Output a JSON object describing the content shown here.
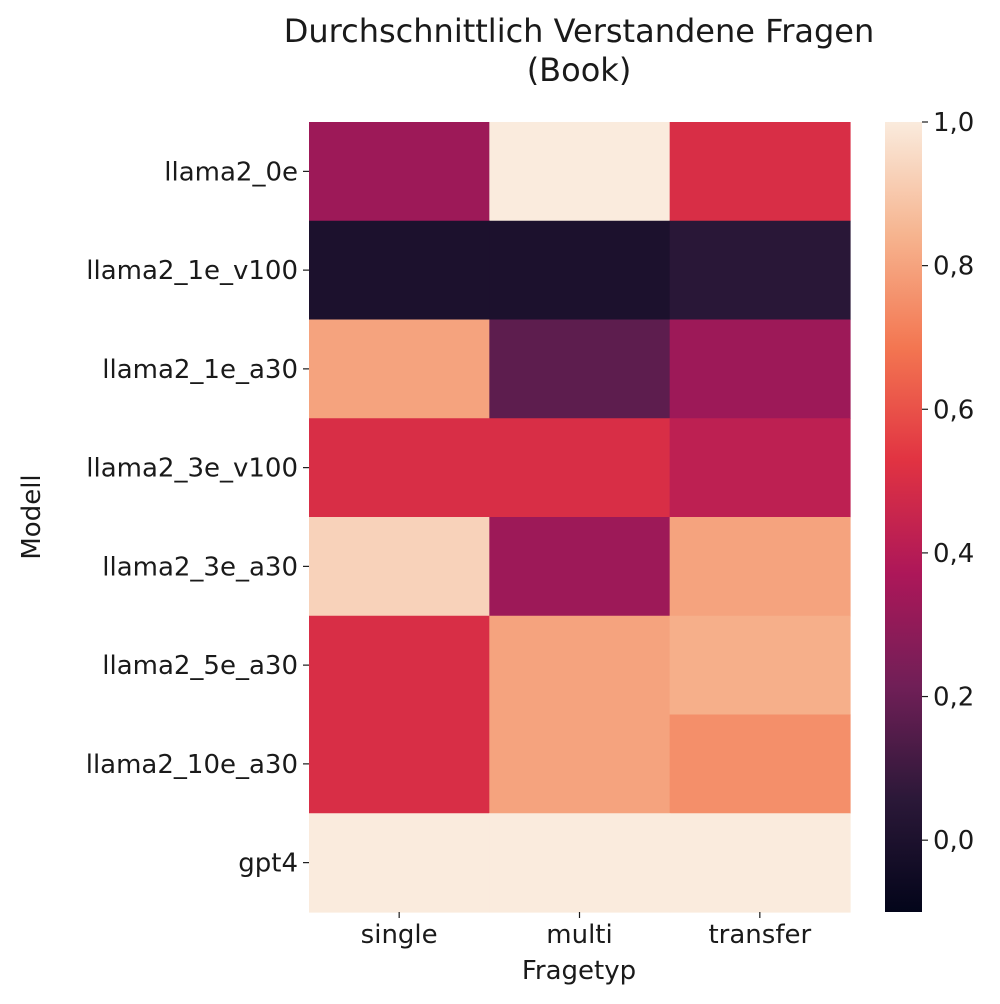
{
  "chart_data": {
    "type": "heatmap",
    "title_line1": "Durchschnittlich Verstandene Fragen",
    "title_line2": "(Book)",
    "xlabel": "Fragetyp",
    "ylabel": "Modell",
    "x_categories": [
      "single",
      "multi",
      "transfer"
    ],
    "y_categories": [
      "llama2_0e",
      "llama2_1e_v100",
      "llama2_1e_a30",
      "llama2_3e_v100",
      "llama2_3e_a30",
      "llama2_5e_a30",
      "llama2_10e_a30",
      "gpt4"
    ],
    "values": [
      [
        0.33,
        1.0,
        0.5
      ],
      [
        0.0,
        0.0,
        0.05
      ],
      [
        0.8,
        0.17,
        0.33
      ],
      [
        0.5,
        0.5,
        0.42
      ],
      [
        0.93,
        0.33,
        0.8
      ],
      [
        0.5,
        0.8,
        0.83
      ],
      [
        0.5,
        0.8,
        0.75
      ],
      [
        1.0,
        1.0,
        1.0
      ]
    ],
    "colorbar": {
      "vmin": -0.1,
      "vmax": 1.0,
      "ticks": [
        0.0,
        0.2,
        0.4,
        0.6,
        0.8,
        1.0
      ],
      "tick_labels": [
        "0,0",
        "0,2",
        "0,4",
        "0,6",
        "0,8",
        "1,0"
      ],
      "colormap": "rocket",
      "colors": [
        "#03051a",
        "#2b1838",
        "#701f57",
        "#ad1759",
        "#e13342",
        "#f37651",
        "#f6b48f",
        "#faebdd"
      ]
    }
  }
}
